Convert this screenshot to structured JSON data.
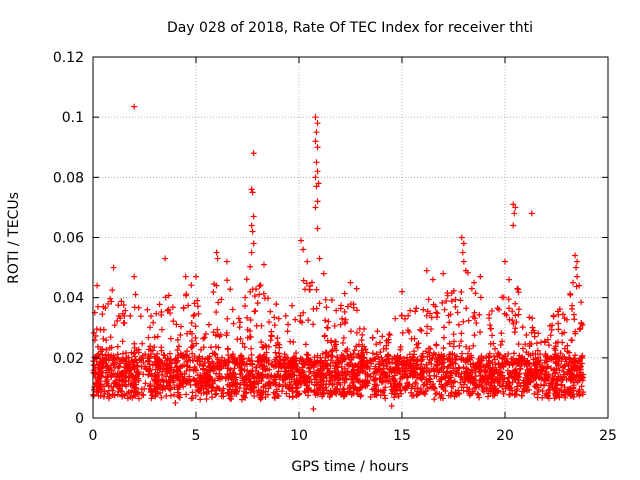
{
  "chart_data": {
    "type": "scatter",
    "title": "Day 028 of 2018, Rate Of TEC Index for receiver thti",
    "xlabel": "GPS time / hours",
    "ylabel": "ROTI / TECUs",
    "xlim": [
      0,
      25
    ],
    "ylim": [
      0,
      0.12
    ],
    "xticks": [
      "0",
      "5",
      "10",
      "15",
      "20",
      "25"
    ],
    "yticks": [
      "0",
      "0.02",
      "0.04",
      "0.06",
      "0.08",
      "0.1",
      "0.12"
    ],
    "grid": true,
    "marker": "+",
    "color": "#ff0000",
    "density_seed": 28,
    "bulk_base_ROTI": 0.013,
    "activity_envelope": [
      {
        "t": 0.0,
        "peak": 0.036
      },
      {
        "t": 0.5,
        "peak": 0.042
      },
      {
        "t": 1.0,
        "peak": 0.045
      },
      {
        "t": 1.5,
        "peak": 0.038
      },
      {
        "t": 2.0,
        "peak": 0.04
      },
      {
        "t": 2.5,
        "peak": 0.041
      },
      {
        "t": 3.0,
        "peak": 0.037
      },
      {
        "t": 3.5,
        "peak": 0.045
      },
      {
        "t": 4.0,
        "peak": 0.035
      },
      {
        "t": 4.5,
        "peak": 0.042
      },
      {
        "t": 5.0,
        "peak": 0.045
      },
      {
        "t": 5.5,
        "peak": 0.028
      },
      {
        "t": 6.0,
        "peak": 0.05
      },
      {
        "t": 6.5,
        "peak": 0.047
      },
      {
        "t": 7.0,
        "peak": 0.038
      },
      {
        "t": 7.5,
        "peak": 0.05
      },
      {
        "t": 7.8,
        "peak": 0.065
      },
      {
        "t": 8.3,
        "peak": 0.044
      },
      {
        "t": 9.0,
        "peak": 0.04
      },
      {
        "t": 9.5,
        "peak": 0.035
      },
      {
        "t": 10.0,
        "peak": 0.045
      },
      {
        "t": 10.5,
        "peak": 0.048
      },
      {
        "t": 11.0,
        "peak": 0.05
      },
      {
        "t": 11.5,
        "peak": 0.038
      },
      {
        "t": 12.0,
        "peak": 0.042
      },
      {
        "t": 12.5,
        "peak": 0.044
      },
      {
        "t": 13.0,
        "peak": 0.036
      },
      {
        "t": 13.5,
        "peak": 0.03
      },
      {
        "t": 14.0,
        "peak": 0.028
      },
      {
        "t": 14.5,
        "peak": 0.03
      },
      {
        "t": 15.0,
        "peak": 0.04
      },
      {
        "t": 15.5,
        "peak": 0.034
      },
      {
        "t": 16.0,
        "peak": 0.04
      },
      {
        "t": 16.5,
        "peak": 0.043
      },
      {
        "t": 17.0,
        "peak": 0.039
      },
      {
        "t": 17.5,
        "peak": 0.044
      },
      {
        "t": 18.0,
        "peak": 0.052
      },
      {
        "t": 18.5,
        "peak": 0.045
      },
      {
        "t": 19.0,
        "peak": 0.04
      },
      {
        "t": 19.5,
        "peak": 0.036
      },
      {
        "t": 20.0,
        "peak": 0.042
      },
      {
        "t": 20.5,
        "peak": 0.046
      },
      {
        "t": 21.0,
        "peak": 0.035
      },
      {
        "t": 21.5,
        "peak": 0.033
      },
      {
        "t": 22.0,
        "peak": 0.034
      },
      {
        "t": 22.5,
        "peak": 0.036
      },
      {
        "t": 23.0,
        "peak": 0.04
      },
      {
        "t": 23.5,
        "peak": 0.048
      },
      {
        "t": 23.8,
        "peak": 0.04
      }
    ],
    "notable_points": [
      {
        "t": 2.0,
        "ROTI": 0.1035
      },
      {
        "t": 7.8,
        "ROTI": 0.088
      },
      {
        "t": 7.7,
        "ROTI": 0.076
      },
      {
        "t": 7.75,
        "ROTI": 0.075
      },
      {
        "t": 7.8,
        "ROTI": 0.067
      },
      {
        "t": 7.7,
        "ROTI": 0.064
      },
      {
        "t": 7.75,
        "ROTI": 0.062
      },
      {
        "t": 7.8,
        "ROTI": 0.058
      },
      {
        "t": 7.7,
        "ROTI": 0.055
      },
      {
        "t": 8.3,
        "ROTI": 0.051
      },
      {
        "t": 6.0,
        "ROTI": 0.055
      },
      {
        "t": 6.05,
        "ROTI": 0.053
      },
      {
        "t": 6.5,
        "ROTI": 0.052
      },
      {
        "t": 1.0,
        "ROTI": 0.05
      },
      {
        "t": 3.5,
        "ROTI": 0.053
      },
      {
        "t": 5.0,
        "ROTI": 0.047
      },
      {
        "t": 2.0,
        "ROTI": 0.047
      },
      {
        "t": 0.2,
        "ROTI": 0.044
      },
      {
        "t": 4.5,
        "ROTI": 0.047
      },
      {
        "t": 10.8,
        "ROTI": 0.1
      },
      {
        "t": 10.9,
        "ROTI": 0.098
      },
      {
        "t": 10.85,
        "ROTI": 0.095
      },
      {
        "t": 10.8,
        "ROTI": 0.092
      },
      {
        "t": 10.9,
        "ROTI": 0.09
      },
      {
        "t": 10.85,
        "ROTI": 0.085
      },
      {
        "t": 10.9,
        "ROTI": 0.082
      },
      {
        "t": 10.8,
        "ROTI": 0.08
      },
      {
        "t": 10.95,
        "ROTI": 0.078
      },
      {
        "t": 10.85,
        "ROTI": 0.077
      },
      {
        "t": 10.9,
        "ROTI": 0.072
      },
      {
        "t": 10.8,
        "ROTI": 0.07
      },
      {
        "t": 10.9,
        "ROTI": 0.063
      },
      {
        "t": 10.1,
        "ROTI": 0.059
      },
      {
        "t": 10.2,
        "ROTI": 0.056
      },
      {
        "t": 10.4,
        "ROTI": 0.052
      },
      {
        "t": 11.2,
        "ROTI": 0.048
      },
      {
        "t": 11.0,
        "ROTI": 0.053
      },
      {
        "t": 12.5,
        "ROTI": 0.045
      },
      {
        "t": 12.8,
        "ROTI": 0.043
      },
      {
        "t": 15.0,
        "ROTI": 0.042
      },
      {
        "t": 16.2,
        "ROTI": 0.049
      },
      {
        "t": 16.5,
        "ROTI": 0.046
      },
      {
        "t": 17.0,
        "ROTI": 0.048
      },
      {
        "t": 17.9,
        "ROTI": 0.06
      },
      {
        "t": 18.0,
        "ROTI": 0.058
      },
      {
        "t": 17.95,
        "ROTI": 0.055
      },
      {
        "t": 18.0,
        "ROTI": 0.052
      },
      {
        "t": 18.1,
        "ROTI": 0.049
      },
      {
        "t": 18.8,
        "ROTI": 0.047
      },
      {
        "t": 18.5,
        "ROTI": 0.045
      },
      {
        "t": 20.0,
        "ROTI": 0.052
      },
      {
        "t": 20.2,
        "ROTI": 0.046
      },
      {
        "t": 20.4,
        "ROTI": 0.071
      },
      {
        "t": 20.5,
        "ROTI": 0.07
      },
      {
        "t": 20.45,
        "ROTI": 0.068
      },
      {
        "t": 20.4,
        "ROTI": 0.064
      },
      {
        "t": 21.3,
        "ROTI": 0.068
      },
      {
        "t": 20.6,
        "ROTI": 0.043
      },
      {
        "t": 23.4,
        "ROTI": 0.054
      },
      {
        "t": 23.5,
        "ROTI": 0.052
      },
      {
        "t": 23.45,
        "ROTI": 0.05
      },
      {
        "t": 23.5,
        "ROTI": 0.047
      },
      {
        "t": 23.6,
        "ROTI": 0.044
      },
      {
        "t": 23.3,
        "ROTI": 0.045
      },
      {
        "t": 10.7,
        "ROTI": 0.003
      },
      {
        "t": 14.5,
        "ROTI": 0.004
      },
      {
        "t": 4.0,
        "ROTI": 0.005
      }
    ]
  }
}
